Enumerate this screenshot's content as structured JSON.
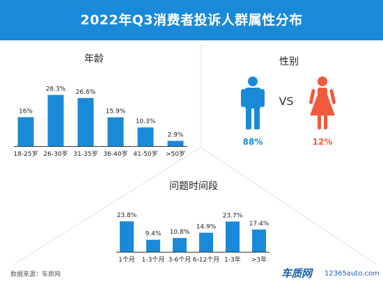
{
  "title": "2022年Q3消费者投诉人群属性分布",
  "colors": {
    "header": "#1a8ad8",
    "bar": "#1a8ad8",
    "male": "#1a8ad8",
    "female": "#f15a3e",
    "divider": "#c8c8c8"
  },
  "chart_data": [
    {
      "type": "bar",
      "title": "年龄",
      "categories": [
        "18-25岁",
        "26-30岁",
        "31-35岁",
        "36-40岁",
        "41-50岁",
        ">50岁"
      ],
      "values": [
        16,
        28.3,
        26.6,
        15.9,
        10.3,
        2.9
      ],
      "labels": [
        "16%",
        "28.3%",
        "26.6%",
        "15.9%",
        "10.3%",
        "2.9%"
      ],
      "ylim": [
        0,
        30
      ],
      "grid": false
    },
    {
      "type": "pie",
      "title": "性别",
      "categories": [
        "男",
        "女"
      ],
      "values": [
        88,
        12
      ],
      "labels": [
        "88%",
        "12%"
      ],
      "separator": "VS"
    },
    {
      "type": "bar",
      "title": "问题时间段",
      "categories": [
        "1个月",
        "1-3个月",
        "3-6个月",
        "6-12个月",
        "1-3年",
        ">3年"
      ],
      "values": [
        23.8,
        9.4,
        10.8,
        14.9,
        23.7,
        17.4
      ],
      "labels": [
        "23.8%",
        "9.4%",
        "10.8%",
        "14.9%",
        "23.7%",
        "17.4%"
      ],
      "ylim": [
        0,
        25
      ],
      "grid": false
    }
  ],
  "footer": {
    "source": "数据来源：车质网",
    "logo_brand": "车质网",
    "logo_site": "12365auto.com"
  }
}
